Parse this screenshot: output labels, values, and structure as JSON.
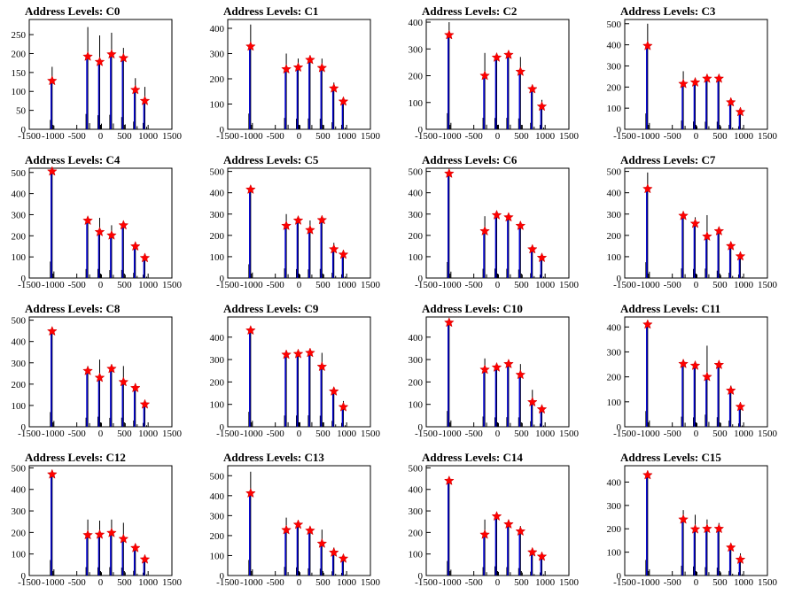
{
  "figure": {
    "background": "#ffffff",
    "marker_color": "#ff0000",
    "fine_color": "#000000",
    "coarse_color": "#0000cc"
  },
  "chart_data": [
    {
      "type": "bar",
      "title": "Address Levels: C0",
      "xlim": [
        -1500,
        1500
      ],
      "xticks": [
        -1500,
        -1000,
        -500,
        0,
        500,
        1000,
        1500
      ],
      "ylim": [
        0,
        290
      ],
      "yticks": [
        0,
        50,
        100,
        150,
        200,
        250
      ],
      "peaks": [
        {
          "x": -1000,
          "max": 165,
          "marker": 128
        },
        {
          "x": -250,
          "max": 270,
          "marker": 192
        },
        {
          "x": 0,
          "max": 248,
          "marker": 178
        },
        {
          "x": 250,
          "max": 255,
          "marker": 198
        },
        {
          "x": 500,
          "max": 215,
          "marker": 188
        },
        {
          "x": 750,
          "max": 135,
          "marker": 104
        },
        {
          "x": 950,
          "max": 112,
          "marker": 75
        }
      ]
    },
    {
      "type": "bar",
      "title": "Address Levels: C1",
      "xlim": [
        -1500,
        1500
      ],
      "xticks": [
        -1500,
        -1000,
        -500,
        0,
        500,
        1000,
        1500
      ],
      "ylim": [
        0,
        435
      ],
      "yticks": [
        0,
        100,
        200,
        300,
        400
      ],
      "peaks": [
        {
          "x": -1000,
          "max": 415,
          "marker": 328
        },
        {
          "x": -250,
          "max": 300,
          "marker": 238
        },
        {
          "x": 0,
          "max": 280,
          "marker": 245
        },
        {
          "x": 250,
          "max": 285,
          "marker": 275
        },
        {
          "x": 500,
          "max": 280,
          "marker": 243
        },
        {
          "x": 750,
          "max": 185,
          "marker": 162
        },
        {
          "x": 950,
          "max": 118,
          "marker": 110
        }
      ]
    },
    {
      "type": "bar",
      "title": "Address Levels: C2",
      "xlim": [
        -1500,
        1500
      ],
      "xticks": [
        -1500,
        -1000,
        -500,
        0,
        500,
        1000,
        1500
      ],
      "ylim": [
        0,
        410
      ],
      "yticks": [
        0,
        100,
        200,
        300,
        400
      ],
      "peaks": [
        {
          "x": -1000,
          "max": 400,
          "marker": 352
        },
        {
          "x": -250,
          "max": 285,
          "marker": 200
        },
        {
          "x": 0,
          "max": 280,
          "marker": 268
        },
        {
          "x": 250,
          "max": 285,
          "marker": 278
        },
        {
          "x": 500,
          "max": 270,
          "marker": 215
        },
        {
          "x": 750,
          "max": 160,
          "marker": 150
        },
        {
          "x": 950,
          "max": 110,
          "marker": 85
        }
      ]
    },
    {
      "type": "bar",
      "title": "Address Levels: C3",
      "xlim": [
        -1500,
        1500
      ],
      "xticks": [
        -1500,
        -1000,
        -500,
        0,
        500,
        1000,
        1500
      ],
      "ylim": [
        0,
        520
      ],
      "yticks": [
        0,
        100,
        200,
        300,
        400,
        500
      ],
      "peaks": [
        {
          "x": -1000,
          "max": 500,
          "marker": 395
        },
        {
          "x": -250,
          "max": 275,
          "marker": 215
        },
        {
          "x": 0,
          "max": 245,
          "marker": 222
        },
        {
          "x": 250,
          "max": 240,
          "marker": 240
        },
        {
          "x": 500,
          "max": 240,
          "marker": 240
        },
        {
          "x": 750,
          "max": 140,
          "marker": 128
        },
        {
          "x": 950,
          "max": 95,
          "marker": 82
        }
      ]
    },
    {
      "type": "bar",
      "title": "Address Levels: C4",
      "xlim": [
        -1500,
        1500
      ],
      "xticks": [
        -1500,
        -1000,
        -500,
        0,
        500,
        1000,
        1500
      ],
      "ylim": [
        0,
        520
      ],
      "yticks": [
        0,
        100,
        200,
        300,
        400,
        500
      ],
      "peaks": [
        {
          "x": -1000,
          "max": 520,
          "marker": 505
        },
        {
          "x": -250,
          "max": 285,
          "marker": 272
        },
        {
          "x": 0,
          "max": 285,
          "marker": 218
        },
        {
          "x": 250,
          "max": 250,
          "marker": 202
        },
        {
          "x": 500,
          "max": 255,
          "marker": 250
        },
        {
          "x": 750,
          "max": 165,
          "marker": 150
        },
        {
          "x": 950,
          "max": 105,
          "marker": 95
        }
      ]
    },
    {
      "type": "bar",
      "title": "Address Levels: C5",
      "xlim": [
        -1500,
        1500
      ],
      "xticks": [
        -1500,
        -1000,
        -500,
        0,
        500,
        1000,
        1500
      ],
      "ylim": [
        0,
        515
      ],
      "yticks": [
        0,
        100,
        200,
        300,
        400,
        500
      ],
      "peaks": [
        {
          "x": -1000,
          "max": 430,
          "marker": 415
        },
        {
          "x": -250,
          "max": 300,
          "marker": 245
        },
        {
          "x": 0,
          "max": 280,
          "marker": 270
        },
        {
          "x": 250,
          "max": 270,
          "marker": 225
        },
        {
          "x": 500,
          "max": 285,
          "marker": 272
        },
        {
          "x": 750,
          "max": 165,
          "marker": 135
        },
        {
          "x": 950,
          "max": 115,
          "marker": 110
        }
      ]
    },
    {
      "type": "bar",
      "title": "Address Levels: C6",
      "xlim": [
        -1500,
        1500
      ],
      "xticks": [
        -1500,
        -1000,
        -500,
        0,
        500,
        1000,
        1500
      ],
      "ylim": [
        0,
        515
      ],
      "yticks": [
        0,
        100,
        200,
        300,
        400,
        500
      ],
      "peaks": [
        {
          "x": -1000,
          "max": 500,
          "marker": 490
        },
        {
          "x": -250,
          "max": 290,
          "marker": 220
        },
        {
          "x": 0,
          "max": 295,
          "marker": 295
        },
        {
          "x": 250,
          "max": 290,
          "marker": 285
        },
        {
          "x": 500,
          "max": 265,
          "marker": 245
        },
        {
          "x": 750,
          "max": 150,
          "marker": 135
        },
        {
          "x": 950,
          "max": 105,
          "marker": 95
        }
      ]
    },
    {
      "type": "bar",
      "title": "Address Levels: C7",
      "xlim": [
        -1500,
        1500
      ],
      "xticks": [
        -1500,
        -1000,
        -500,
        0,
        500,
        1000,
        1500
      ],
      "ylim": [
        0,
        515
      ],
      "yticks": [
        0,
        100,
        200,
        300,
        400,
        500
      ],
      "peaks": [
        {
          "x": -1000,
          "max": 495,
          "marker": 418
        },
        {
          "x": -250,
          "max": 300,
          "marker": 292
        },
        {
          "x": 0,
          "max": 285,
          "marker": 255
        },
        {
          "x": 250,
          "max": 295,
          "marker": 195
        },
        {
          "x": 500,
          "max": 230,
          "marker": 220
        },
        {
          "x": 750,
          "max": 165,
          "marker": 150
        },
        {
          "x": 950,
          "max": 110,
          "marker": 102
        }
      ]
    },
    {
      "type": "bar",
      "title": "Address Levels: C8",
      "xlim": [
        -1500,
        1500
      ],
      "xticks": [
        -1500,
        -1000,
        -500,
        0,
        500,
        1000,
        1500
      ],
      "ylim": [
        0,
        515
      ],
      "yticks": [
        0,
        100,
        200,
        300,
        400,
        500
      ],
      "peaks": [
        {
          "x": -1000,
          "max": 460,
          "marker": 448
        },
        {
          "x": -250,
          "max": 285,
          "marker": 262
        },
        {
          "x": 0,
          "max": 315,
          "marker": 230
        },
        {
          "x": 250,
          "max": 280,
          "marker": 272
        },
        {
          "x": 500,
          "max": 285,
          "marker": 210
        },
        {
          "x": 750,
          "max": 195,
          "marker": 182
        },
        {
          "x": 950,
          "max": 120,
          "marker": 105
        }
      ]
    },
    {
      "type": "bar",
      "title": "Address Levels: C9",
      "xlim": [
        -1500,
        1500
      ],
      "xticks": [
        -1500,
        -1000,
        -500,
        0,
        500,
        1000,
        1500
      ],
      "ylim": [
        0,
        490
      ],
      "yticks": [
        0,
        100,
        200,
        300,
        400
      ],
      "peaks": [
        {
          "x": -1000,
          "max": 445,
          "marker": 430
        },
        {
          "x": -250,
          "max": 335,
          "marker": 322
        },
        {
          "x": 0,
          "max": 335,
          "marker": 325
        },
        {
          "x": 250,
          "max": 340,
          "marker": 330
        },
        {
          "x": 500,
          "max": 330,
          "marker": 268
        },
        {
          "x": 750,
          "max": 175,
          "marker": 158
        },
        {
          "x": 950,
          "max": 115,
          "marker": 88
        }
      ]
    },
    {
      "type": "bar",
      "title": "Address Levels: C10",
      "xlim": [
        -1500,
        1500
      ],
      "xticks": [
        -1500,
        -1000,
        -500,
        0,
        500,
        1000,
        1500
      ],
      "ylim": [
        0,
        490
      ],
      "yticks": [
        0,
        100,
        200,
        300,
        400
      ],
      "peaks": [
        {
          "x": -1000,
          "max": 470,
          "marker": 465
        },
        {
          "x": -250,
          "max": 305,
          "marker": 255
        },
        {
          "x": 0,
          "max": 280,
          "marker": 265
        },
        {
          "x": 250,
          "max": 285,
          "marker": 280
        },
        {
          "x": 500,
          "max": 280,
          "marker": 232
        },
        {
          "x": 750,
          "max": 165,
          "marker": 110
        },
        {
          "x": 950,
          "max": 95,
          "marker": 78
        }
      ]
    },
    {
      "type": "bar",
      "title": "Address Levels: C11",
      "xlim": [
        -1500,
        1500
      ],
      "xticks": [
        -1500,
        -1000,
        -500,
        0,
        500,
        1000,
        1500
      ],
      "ylim": [
        0,
        440
      ],
      "yticks": [
        0,
        100,
        200,
        300,
        400
      ],
      "peaks": [
        {
          "x": -1000,
          "max": 420,
          "marker": 410
        },
        {
          "x": -250,
          "max": 270,
          "marker": 252
        },
        {
          "x": 0,
          "max": 250,
          "marker": 245
        },
        {
          "x": 250,
          "max": 325,
          "marker": 200
        },
        {
          "x": 500,
          "max": 255,
          "marker": 248
        },
        {
          "x": 750,
          "max": 165,
          "marker": 145
        },
        {
          "x": 950,
          "max": 90,
          "marker": 80
        }
      ]
    },
    {
      "type": "bar",
      "title": "Address Levels: C12",
      "xlim": [
        -1500,
        1500
      ],
      "xticks": [
        -1500,
        -1000,
        -500,
        0,
        500,
        1000,
        1500
      ],
      "ylim": [
        0,
        510
      ],
      "yticks": [
        0,
        100,
        200,
        300,
        400,
        500
      ],
      "peaks": [
        {
          "x": -1000,
          "max": 480,
          "marker": 470
        },
        {
          "x": -250,
          "max": 260,
          "marker": 188
        },
        {
          "x": 0,
          "max": 255,
          "marker": 190
        },
        {
          "x": 250,
          "max": 260,
          "marker": 198
        },
        {
          "x": 500,
          "max": 245,
          "marker": 170
        },
        {
          "x": 750,
          "max": 145,
          "marker": 128
        },
        {
          "x": 950,
          "max": 90,
          "marker": 75
        }
      ]
    },
    {
      "type": "bar",
      "title": "Address Levels: C13",
      "xlim": [
        -1500,
        1500
      ],
      "xticks": [
        -1500,
        -1000,
        -500,
        0,
        500,
        1000,
        1500
      ],
      "ylim": [
        0,
        550
      ],
      "yticks": [
        0,
        100,
        200,
        300,
        400,
        500
      ],
      "peaks": [
        {
          "x": -1000,
          "max": 520,
          "marker": 412
        },
        {
          "x": -250,
          "max": 290,
          "marker": 228
        },
        {
          "x": 0,
          "max": 275,
          "marker": 255
        },
        {
          "x": 250,
          "max": 240,
          "marker": 225
        },
        {
          "x": 500,
          "max": 230,
          "marker": 160
        },
        {
          "x": 750,
          "max": 140,
          "marker": 115
        },
        {
          "x": 950,
          "max": 90,
          "marker": 85
        }
      ]
    },
    {
      "type": "bar",
      "title": "Address Levels: C14",
      "xlim": [
        -1500,
        1500
      ],
      "xticks": [
        -1500,
        -1000,
        -500,
        0,
        500,
        1000,
        1500
      ],
      "ylim": [
        0,
        510
      ],
      "yticks": [
        0,
        100,
        200,
        300,
        400,
        500
      ],
      "peaks": [
        {
          "x": -1000,
          "max": 450,
          "marker": 440
        },
        {
          "x": -250,
          "max": 260,
          "marker": 190
        },
        {
          "x": 0,
          "max": 285,
          "marker": 275
        },
        {
          "x": 250,
          "max": 260,
          "marker": 238
        },
        {
          "x": 500,
          "max": 230,
          "marker": 205
        },
        {
          "x": 750,
          "max": 120,
          "marker": 108
        },
        {
          "x": 950,
          "max": 95,
          "marker": 88
        }
      ]
    },
    {
      "type": "bar",
      "title": "Address Levels: C15",
      "xlim": [
        -1500,
        1500
      ],
      "xticks": [
        -1500,
        -1000,
        -500,
        0,
        500,
        1000,
        1500
      ],
      "ylim": [
        0,
        470
      ],
      "yticks": [
        0,
        100,
        200,
        300,
        400
      ],
      "peaks": [
        {
          "x": -1000,
          "max": 445,
          "marker": 430
        },
        {
          "x": -250,
          "max": 280,
          "marker": 240
        },
        {
          "x": 0,
          "max": 260,
          "marker": 198
        },
        {
          "x": 250,
          "max": 240,
          "marker": 200
        },
        {
          "x": 500,
          "max": 225,
          "marker": 200
        },
        {
          "x": 750,
          "max": 130,
          "marker": 120
        },
        {
          "x": 950,
          "max": 95,
          "marker": 68
        }
      ]
    }
  ]
}
